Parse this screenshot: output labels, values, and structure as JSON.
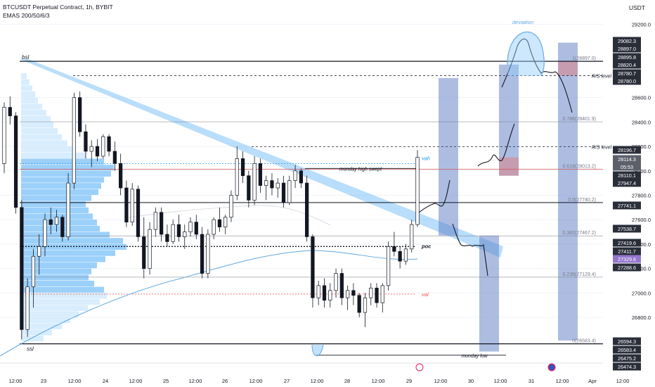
{
  "header": {
    "symbol_line": "BTCUSDT Perpetual Contract, 1h, BYBIT",
    "indicator_line": "EMAS 200/50/6/3",
    "unit": "USDT"
  },
  "chart_data": {
    "type": "candlestick",
    "timeframe": "1h",
    "ylim": [
      26460,
      29330
    ],
    "y_axis_ticks": [
      26800,
      27000,
      27200,
      27400,
      27600,
      27800,
      28000,
      28200,
      28400,
      28600,
      29200
    ],
    "x_axis_ticks": [
      "12:00",
      "23",
      "12:00",
      "24",
      "12:00",
      "25",
      "12:00",
      "26",
      "12:00",
      "27",
      "12:00",
      "28",
      "12:00",
      "29",
      "12:00",
      "30",
      "12:00",
      "31",
      "12:00",
      "Apr",
      "12:00"
    ],
    "price_badges": [
      {
        "value": "29082.3",
        "color": "#2a2e39"
      },
      {
        "value": "28897.0",
        "color": "#2a2e39"
      },
      {
        "value": "28895.8",
        "color": "#2a2e39"
      },
      {
        "value": "28820.4",
        "color": "#2a2e39"
      },
      {
        "value": "28780.7",
        "color": "#2a2e39"
      },
      {
        "value": "28780.0",
        "color": "#2a2e39"
      },
      {
        "value": "28196.7",
        "color": "#2a2e39"
      },
      {
        "value": "28114.3",
        "color": "#5d606b"
      },
      {
        "value": "05:53",
        "color": "#5d606b"
      },
      {
        "value": "28110.1",
        "color": "#2a2e39"
      },
      {
        "value": "27947.4",
        "color": "#2a2e39"
      },
      {
        "value": "27741.1",
        "color": "#2a2e39"
      },
      {
        "value": "27538.7",
        "color": "#2a2e39"
      },
      {
        "value": "27419.6",
        "color": "#2a2e39"
      },
      {
        "value": "27411.7",
        "color": "#2a2e39"
      },
      {
        "value": "27329.6",
        "color": "#9575cd"
      },
      {
        "value": "27288.6",
        "color": "#2a2e39"
      },
      {
        "value": "26594.3",
        "color": "#2a2e39"
      },
      {
        "value": "26583.4",
        "color": "#2a2e39"
      },
      {
        "value": "26475.2",
        "color": "#2a2e39"
      },
      {
        "value": "26474.3",
        "color": "#2a2e39"
      }
    ],
    "fibonacci": [
      {
        "label": "1(28897.0)",
        "value": 28897.0
      },
      {
        "label": "0.786(28401.9)",
        "value": 28401.9
      },
      {
        "label": "0.618(28013.2)",
        "value": 28013.2
      },
      {
        "label": "0.5(27740.2)",
        "value": 27740.2
      },
      {
        "label": "0.382(27467.2)",
        "value": 27467.2
      },
      {
        "label": "0.236(27129.4)",
        "value": 27129.4
      },
      {
        "label": "0(26583.4)",
        "value": 26583.4
      }
    ],
    "annotations": {
      "bsl": "bsl",
      "ssl": "ssl",
      "poc": "poc",
      "vah": "vah",
      "val": "val",
      "monday_high": "monday high swept",
      "monday_low": "monday low",
      "rs_level_1": "R/S level",
      "rs_level_2": "R/S level",
      "deviation": "deviation"
    },
    "levels": {
      "bsl": 28897.0,
      "ssl": 26583.4,
      "poc": 27380,
      "vah": 28060,
      "val": 26990,
      "rs_upper": 28780.0,
      "rs_lower": 28196.7,
      "monday_high": 28020,
      "monday_low": 26490
    },
    "candles_ohlc": [
      [
        28060,
        28560,
        27980,
        28520
      ],
      [
        28520,
        28610,
        28380,
        28450
      ],
      [
        28450,
        28480,
        27650,
        27700
      ],
      [
        27700,
        27760,
        26620,
        26700
      ],
      [
        26700,
        27120,
        26640,
        27050
      ],
      [
        27050,
        27360,
        26880,
        27300
      ],
      [
        27300,
        27480,
        27150,
        27380
      ],
      [
        27380,
        27650,
        27300,
        27600
      ],
      [
        27600,
        27700,
        27480,
        27560
      ],
      [
        27560,
        27680,
        27500,
        27620
      ],
      [
        27620,
        27640,
        27420,
        27460
      ],
      [
        27460,
        27980,
        27430,
        27900
      ],
      [
        27900,
        28640,
        27850,
        28600
      ],
      [
        28600,
        28650,
        28280,
        28320
      ],
      [
        28320,
        28380,
        28100,
        28160
      ],
      [
        28160,
        28250,
        28030,
        28200
      ],
      [
        28200,
        28260,
        28080,
        28120
      ],
      [
        28120,
        28300,
        28100,
        28280
      ],
      [
        28280,
        28300,
        28120,
        28160
      ],
      [
        28160,
        28240,
        28000,
        28060
      ],
      [
        28060,
        28140,
        27800,
        27860
      ],
      [
        27860,
        27920,
        27540,
        27580
      ],
      [
        27580,
        27900,
        27550,
        27850
      ],
      [
        27850,
        27880,
        27420,
        27460
      ],
      [
        27460,
        27620,
        27120,
        27200
      ],
      [
        27200,
        27580,
        27150,
        27520
      ],
      [
        27520,
        27700,
        27460,
        27660
      ],
      [
        27660,
        27700,
        27420,
        27480
      ],
      [
        27480,
        27560,
        27380,
        27420
      ],
      [
        27420,
        27600,
        27400,
        27560
      ],
      [
        27560,
        27640,
        27420,
        27460
      ],
      [
        27460,
        27560,
        27360,
        27500
      ],
      [
        27500,
        27620,
        27460,
        27580
      ],
      [
        27580,
        27640,
        27440,
        27480
      ],
      [
        27480,
        27540,
        27120,
        27160
      ],
      [
        27160,
        27520,
        27120,
        27480
      ],
      [
        27480,
        27620,
        27440,
        27600
      ],
      [
        27600,
        27700,
        27500,
        27540
      ],
      [
        27540,
        27640,
        27480,
        27620
      ],
      [
        27620,
        27840,
        27580,
        27800
      ],
      [
        27800,
        28200,
        27760,
        28100
      ],
      [
        28100,
        28160,
        27900,
        27960
      ],
      [
        27960,
        28000,
        27700,
        27760
      ],
      [
        27760,
        28120,
        27720,
        28060
      ],
      [
        28060,
        28100,
        27820,
        27880
      ],
      [
        27880,
        27960,
        27760,
        27920
      ],
      [
        27920,
        27980,
        27800,
        27860
      ],
      [
        27860,
        27940,
        27780,
        27900
      ],
      [
        27900,
        27960,
        27700,
        27740
      ],
      [
        27740,
        27960,
        27720,
        27920
      ],
      [
        27920,
        28050,
        27860,
        28000
      ],
      [
        28000,
        28020,
        27860,
        27900
      ],
      [
        27900,
        27960,
        27420,
        27460
      ],
      [
        27460,
        27480,
        26880,
        26960
      ],
      [
        26960,
        27100,
        26900,
        27060
      ],
      [
        27060,
        27120,
        26880,
        26940
      ],
      [
        26940,
        27080,
        26880,
        27020
      ],
      [
        27020,
        27200,
        26960,
        27160
      ],
      [
        27160,
        27200,
        26900,
        26960
      ],
      [
        26960,
        27060,
        26860,
        27020
      ],
      [
        27020,
        27080,
        26900,
        26980
      ],
      [
        26980,
        27000,
        26800,
        26840
      ],
      [
        26840,
        27000,
        26720,
        26960
      ],
      [
        26960,
        27080,
        26900,
        27040
      ],
      [
        27040,
        27080,
        26880,
        26920
      ],
      [
        26920,
        27080,
        26840,
        27060
      ],
      [
        27060,
        27420,
        27020,
        27380
      ],
      [
        27380,
        27500,
        27300,
        27340
      ],
      [
        27340,
        27380,
        27200,
        27260
      ],
      [
        27260,
        27400,
        27230,
        27360
      ],
      [
        27360,
        27600,
        27330,
        27560
      ],
      [
        27560,
        28170,
        27540,
        28110
      ]
    ],
    "projection_boxes": [
      {
        "from": 28760,
        "to": 27470
      },
      {
        "from": 27470,
        "to": 26520
      },
      {
        "from": 28870,
        "to": 27960
      },
      {
        "from": 29050,
        "to": 26610
      }
    ]
  }
}
